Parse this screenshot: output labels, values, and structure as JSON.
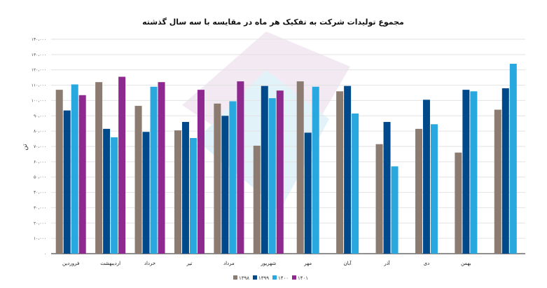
{
  "chart_data": {
    "type": "bar",
    "title": "مجموع تولیدات شرکت به تفکیک هر ماه در مقایسه با سه سال گذشته",
    "ylabel": "تن",
    "xlabel": "",
    "ylim": [
      0,
      140000
    ],
    "yticks": [
      0,
      10000,
      20000,
      30000,
      40000,
      50000,
      60000,
      70000,
      80000,
      90000,
      100000,
      110000,
      120000,
      130000,
      140000
    ],
    "ytick_labels": [
      "۰",
      "۱۰،۰۰۰",
      "۲۰،۰۰۰",
      "۳۰،۰۰۰",
      "۴۰،۰۰۰",
      "۵۰،۰۰۰",
      "۶۰،۰۰۰",
      "۷۰،۰۰۰",
      "۸۰،۰۰۰",
      "۹۰،۰۰۰",
      "۱۰۰،۰۰۰",
      "۱۱۰،۰۰۰",
      "۱۲۰،۰۰۰",
      "۱۳۰،۰۰۰",
      "۱۴۰،۰۰۰"
    ],
    "grid": true,
    "legend_position": "bottom",
    "categories": [
      "فروردین",
      "اردیبهشت",
      "خرداد",
      "تیر",
      "مرداد",
      "شهریور",
      "مهر",
      "آبان",
      "آذر",
      "دی",
      "بهمن",
      ""
    ],
    "series": [
      {
        "name": "۱۳۹۸",
        "color": "#8c7b70",
        "values": [
          107000,
          112000,
          96500,
          80500,
          98000,
          70500,
          112500,
          106000,
          71500,
          81500,
          66000,
          94000
        ]
      },
      {
        "name": "۱۳۹۹",
        "color": "#004a8c",
        "values": [
          93500,
          81500,
          79500,
          86000,
          90000,
          109500,
          79000,
          109500,
          86000,
          100500,
          107000,
          108000
        ]
      },
      {
        "name": "۱۴۰۰",
        "color": "#29a8e0",
        "values": [
          110500,
          76000,
          109000,
          75500,
          99500,
          101500,
          109000,
          91500,
          57000,
          84500,
          106000,
          124000
        ]
      },
      {
        "name": "۱۴۰۱",
        "color": "#8e2a8f",
        "values": [
          103500,
          115500,
          112000,
          107000,
          112500,
          106500,
          null,
          null,
          null,
          null,
          null,
          null
        ]
      }
    ]
  }
}
